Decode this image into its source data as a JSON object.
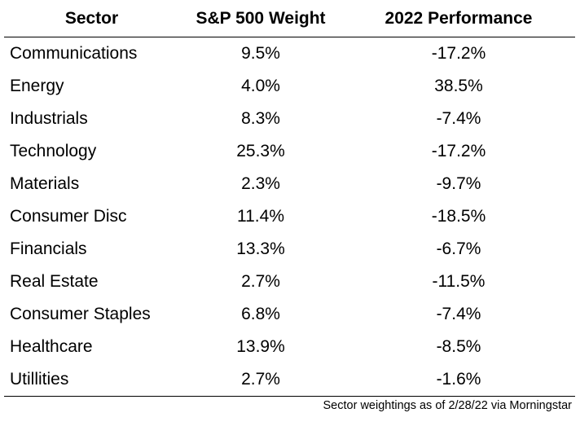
{
  "table": {
    "headers": [
      "Sector",
      "S&P 500 Weight",
      "2022 Performance"
    ],
    "rows": [
      [
        "Communications",
        "9.5%",
        "-17.2%"
      ],
      [
        "Energy",
        "4.0%",
        "38.5%"
      ],
      [
        "Industrials",
        "8.3%",
        "-7.4%"
      ],
      [
        "Technology",
        "25.3%",
        "-17.2%"
      ],
      [
        "Materials",
        "2.3%",
        "-9.7%"
      ],
      [
        "Consumer Disc",
        "11.4%",
        "-18.5%"
      ],
      [
        "Financials",
        "13.3%",
        "-6.7%"
      ],
      [
        "Real Estate",
        "2.7%",
        "-11.5%"
      ],
      [
        "Consumer Staples",
        "6.8%",
        "-7.4%"
      ],
      [
        "Healthcare",
        "13.9%",
        "-8.5%"
      ],
      [
        "Utillities",
        "2.7%",
        "-1.6%"
      ]
    ]
  },
  "footnote": "Sector weightings as of 2/28/22 via Morningstar"
}
